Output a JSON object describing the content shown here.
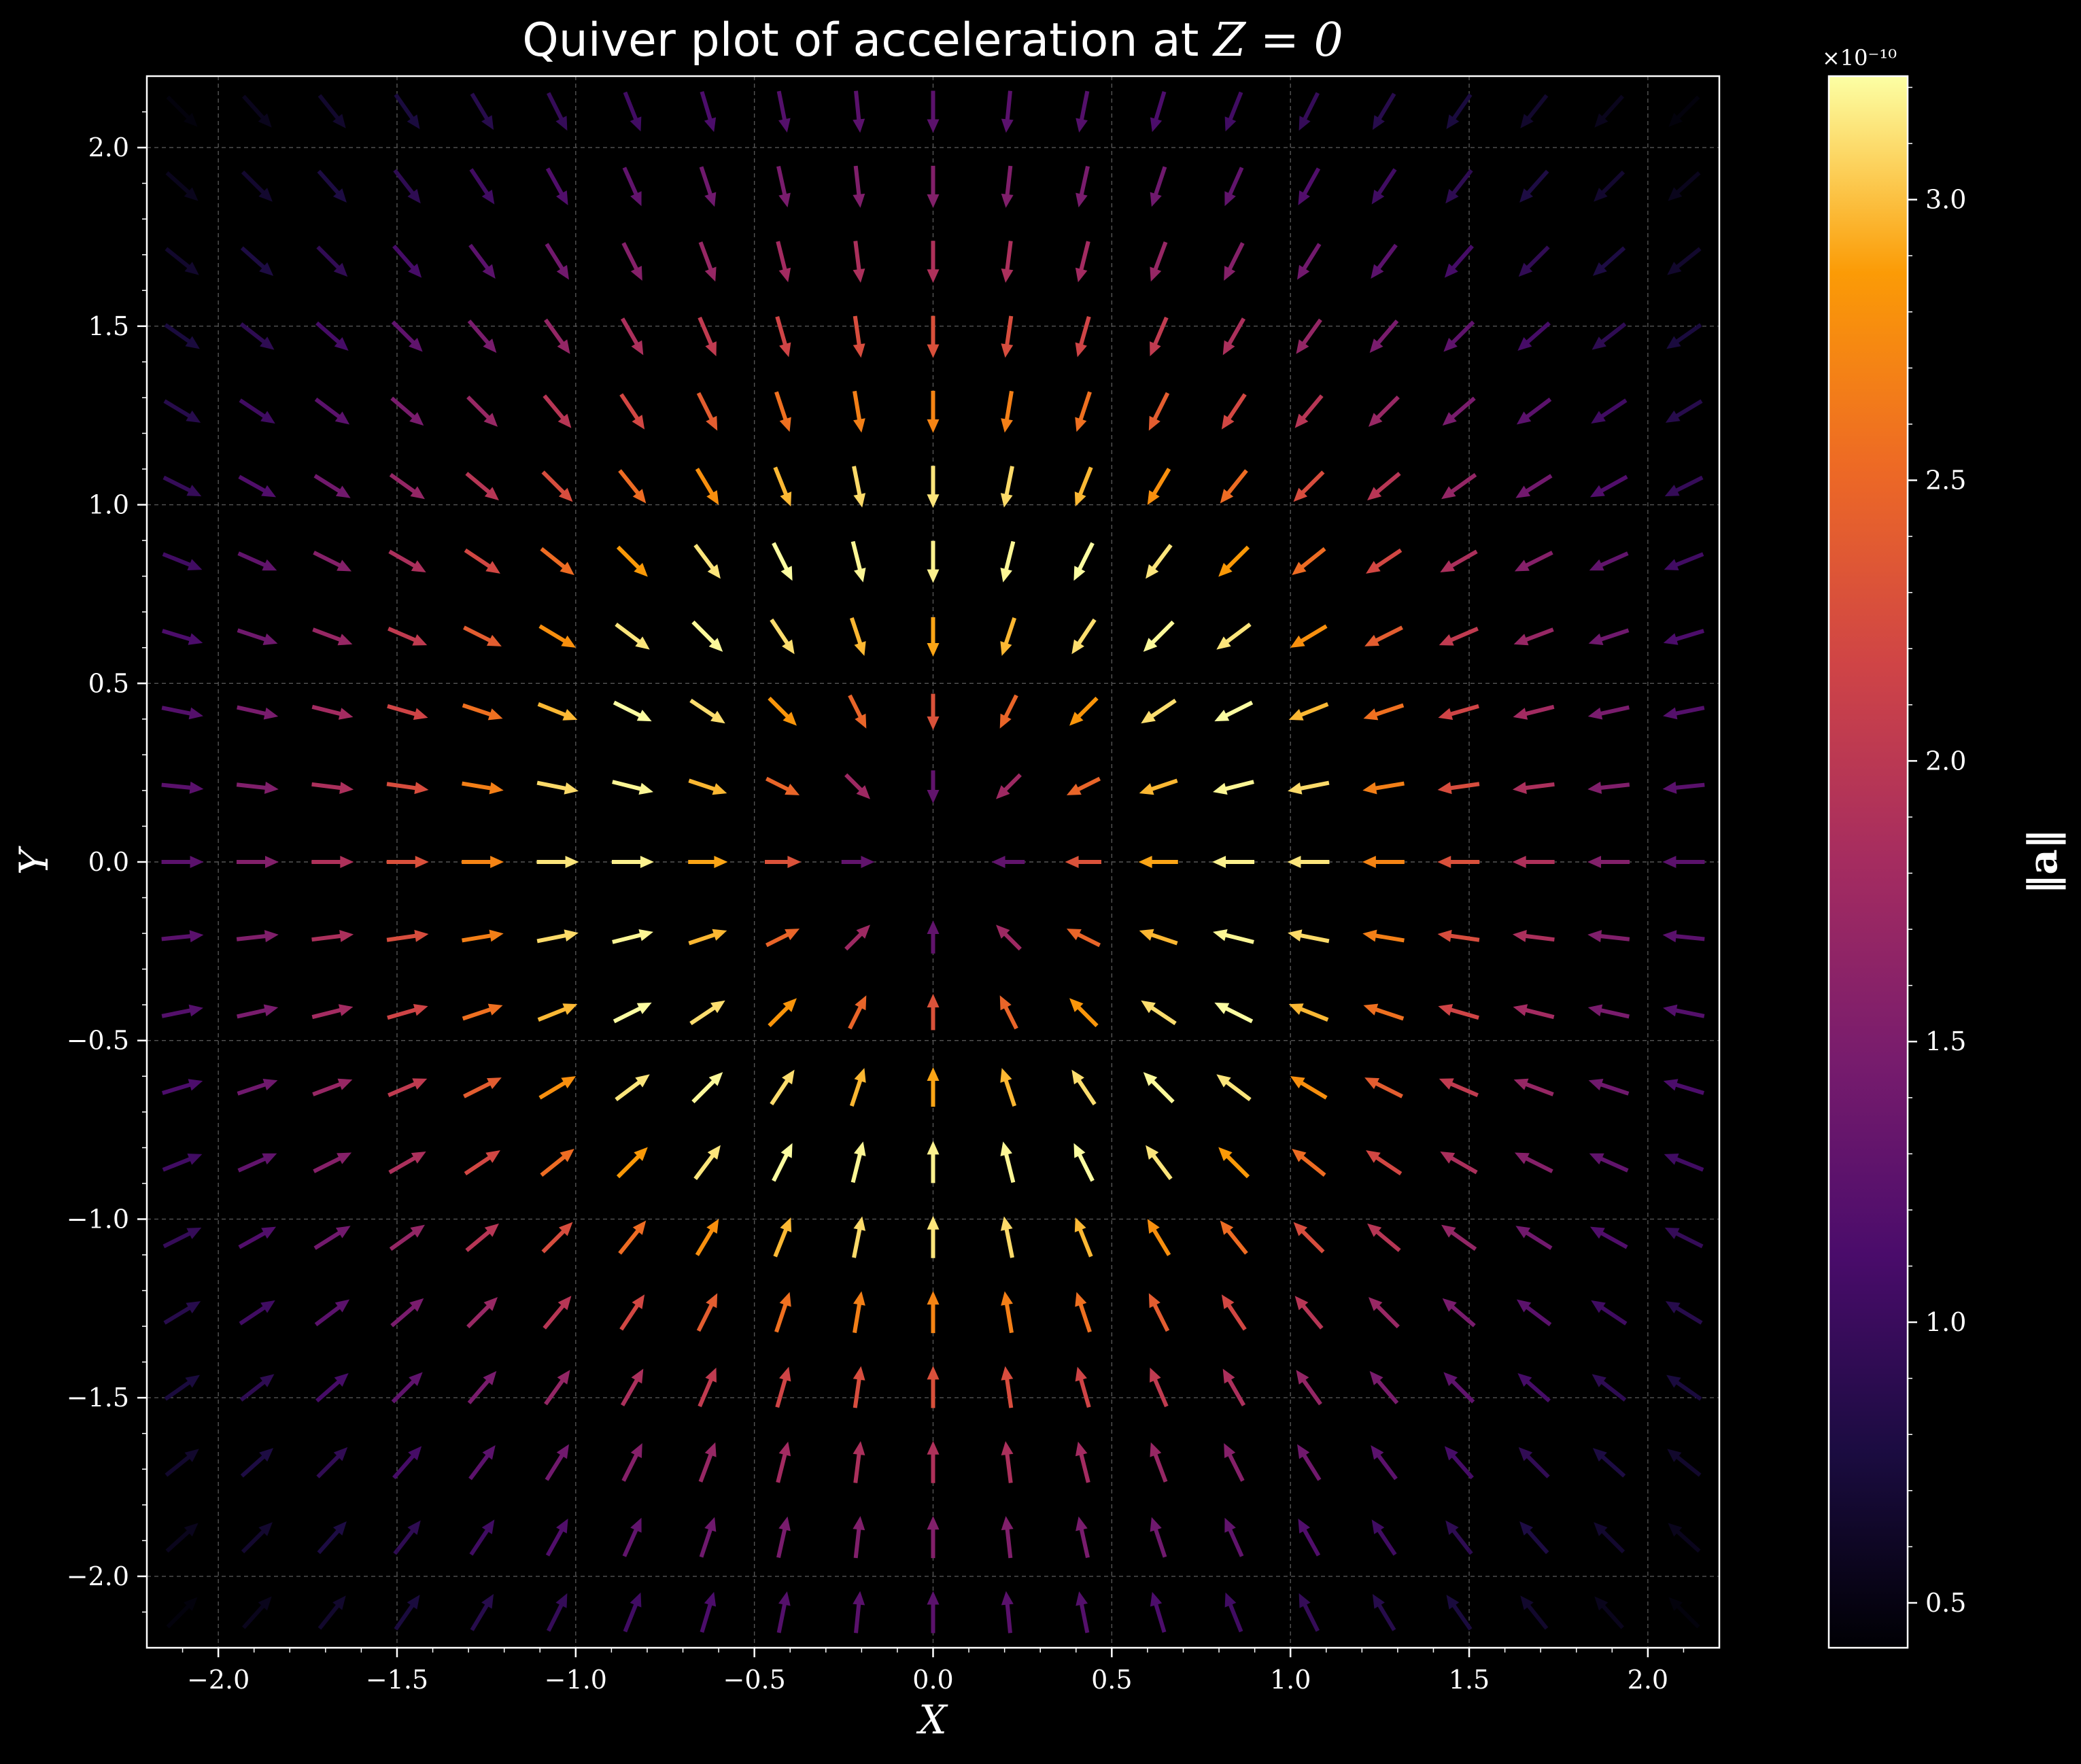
{
  "chart_data": {
    "type": "quiver",
    "title_prefix": "Quiver plot of acceleration at ",
    "title_math": "Z = 0",
    "xlabel": "X",
    "ylabel": "Y",
    "xlim": [
      -2.2,
      2.2
    ],
    "ylim": [
      -2.2,
      2.2
    ],
    "x_ticks": [
      -2.0,
      -1.5,
      -1.0,
      -0.5,
      0.0,
      0.5,
      1.0,
      1.5,
      2.0
    ],
    "y_ticks": [
      -2.0,
      -1.5,
      -1.0,
      -0.5,
      0.0,
      0.5,
      1.0,
      1.5,
      2.0
    ],
    "x_tick_labels": [
      "−2.0",
      "−1.5",
      "−1.0",
      "−0.5",
      "0.0",
      "0.5",
      "1.0",
      "1.5",
      "2.0"
    ],
    "y_tick_labels": [
      "−2.0",
      "−1.5",
      "−1.0",
      "−0.5",
      "0.0",
      "0.5",
      "1.0",
      "1.5",
      "2.0"
    ],
    "grid": true,
    "grid_spacing": 0.21,
    "grid_range": [
      -2.1,
      2.1
    ],
    "field": "radial, directed toward origin; magnitude peaks near radius 1 and vanishes at the origin",
    "colormap": "inferno",
    "colorbar": {
      "label": "‖a‖",
      "min": 0.42,
      "max": 3.22,
      "ticks": [
        0.5,
        1.0,
        1.5,
        2.0,
        2.5,
        3.0
      ],
      "tick_labels": [
        "0.5",
        "1.0",
        "1.5",
        "2.0",
        "2.5",
        "3.0"
      ],
      "offset_text": "×10⁻¹⁰"
    },
    "background": "#000000",
    "foreground": "#ffffff"
  }
}
